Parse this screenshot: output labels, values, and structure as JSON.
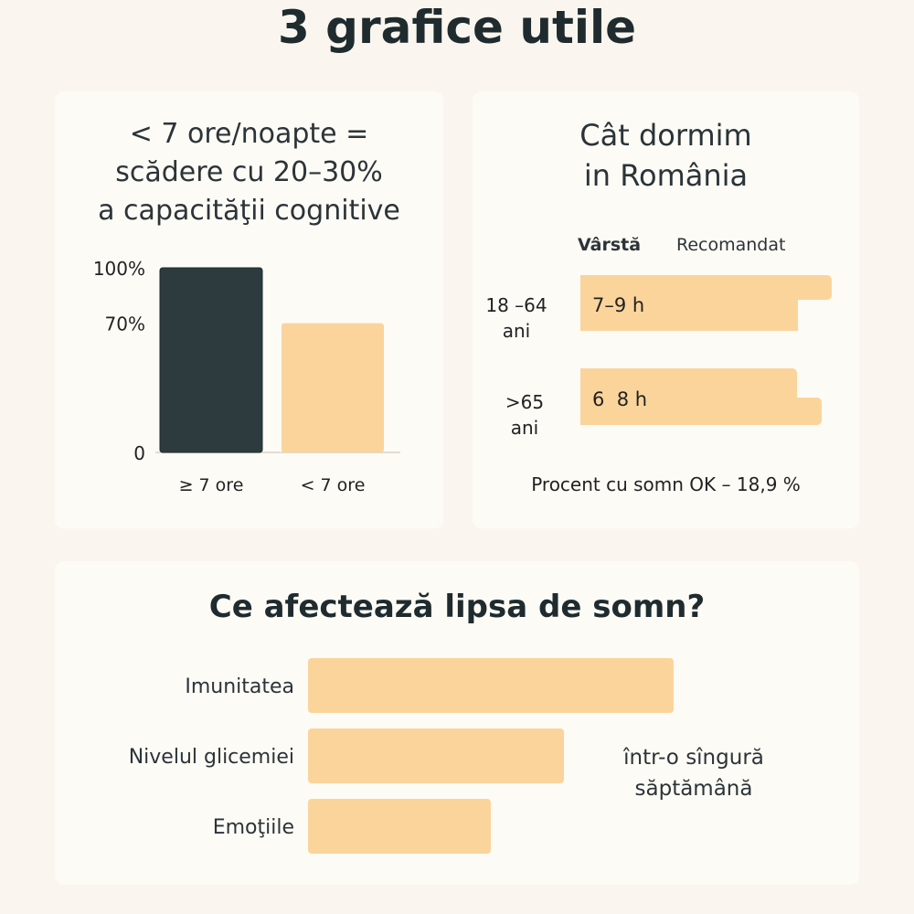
{
  "page": {
    "title": "3 grafice utile"
  },
  "colors": {
    "dark_bar": "#2d3b3e",
    "light_bar": "#fbd49b",
    "background": "#faf6ef",
    "card": "#fdfbf6",
    "text": "#1f2b2e",
    "axis": "#d8d3cb"
  },
  "cards": {
    "cognitive": {
      "title_lines": [
        "< 7 ore/noapte =",
        "scădere cu 20–30%",
        "a capacităţii cognitive"
      ]
    },
    "romania": {
      "title_lines": [
        "Cât dormim",
        "in România"
      ],
      "col_age": "Vârstă",
      "col_recommended": "Recomandat",
      "rows": [
        {
          "age_lines": [
            "18 –64",
            "ani"
          ],
          "range": "7–9 h"
        },
        {
          "age_lines": [
            ">65",
            "ani"
          ],
          "range": "6  8 h"
        }
      ],
      "footnote": "Procent cu somn OK – 18,9 %"
    },
    "effects": {
      "title": "Ce afectează lipsa de somn?",
      "note_lines": [
        "într-o sîngură",
        "săptămână"
      ]
    }
  },
  "chart_data": [
    {
      "type": "bar",
      "title": "< 7 ore/noapte = scădere cu 20–30% a capacităţii cognitive",
      "categories": [
        "≥ 7 ore",
        "< 7 ore"
      ],
      "values": [
        100,
        70
      ],
      "ylim": [
        0,
        100
      ],
      "yticks": [
        0,
        70,
        100
      ],
      "ytick_labels": [
        "0",
        "70%",
        "100%"
      ],
      "xlabel": "",
      "ylabel": "",
      "grid": false,
      "legend": "none"
    },
    {
      "type": "bar",
      "orientation": "horizontal",
      "title": "Ce afectează lipsa de somn?",
      "categories": [
        "Imunitatea",
        "Nivelul glicemiei",
        "Emoţiile"
      ],
      "values": [
        100,
        70,
        50
      ],
      "xlim": [
        0,
        100
      ],
      "value_labels_shown": false,
      "xlabel": "",
      "ylabel": "",
      "grid": false,
      "legend": "none"
    }
  ]
}
